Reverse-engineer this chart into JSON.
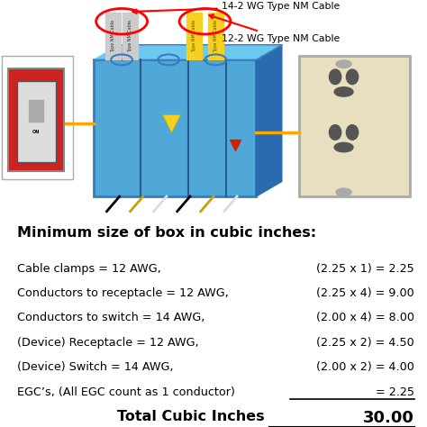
{
  "title": "Minimum size of box in cubic inches:",
  "rows": [
    {
      "left": "Cable clamps = 12 AWG,",
      "middle": "(2.25 x 1) = 2.25"
    },
    {
      "left": "Conductors to receptacle = 12 AWG,",
      "middle": "(2.25 x 4) = 9.00"
    },
    {
      "left": "Conductors to switch = 14 AWG,",
      "middle": "(2.00 x 4) = 8.00"
    },
    {
      "left": "(Device) Receptacle = 12 AWG,",
      "middle": "(2.25 x 2) = 4.50"
    },
    {
      "left": "(Device) Switch = 14 AWG,",
      "middle": "(2.00 x 2) = 4.00"
    },
    {
      "left": "EGC’s, (All EGC count as 1 conductor)",
      "middle": "= 2.25"
    }
  ],
  "total_label": "Total Cubic Inches",
  "total_value": "30.00",
  "label_14awg": "14-2 WG Type NM Cable",
  "label_12awg": "12-2 WG Type NM Cable",
  "bg_color": "#ffffff",
  "title_color": "#000000",
  "text_color": "#000000",
  "title_fontsize": 11.5,
  "body_fontsize": 9.2,
  "total_fontsize": 11.5
}
